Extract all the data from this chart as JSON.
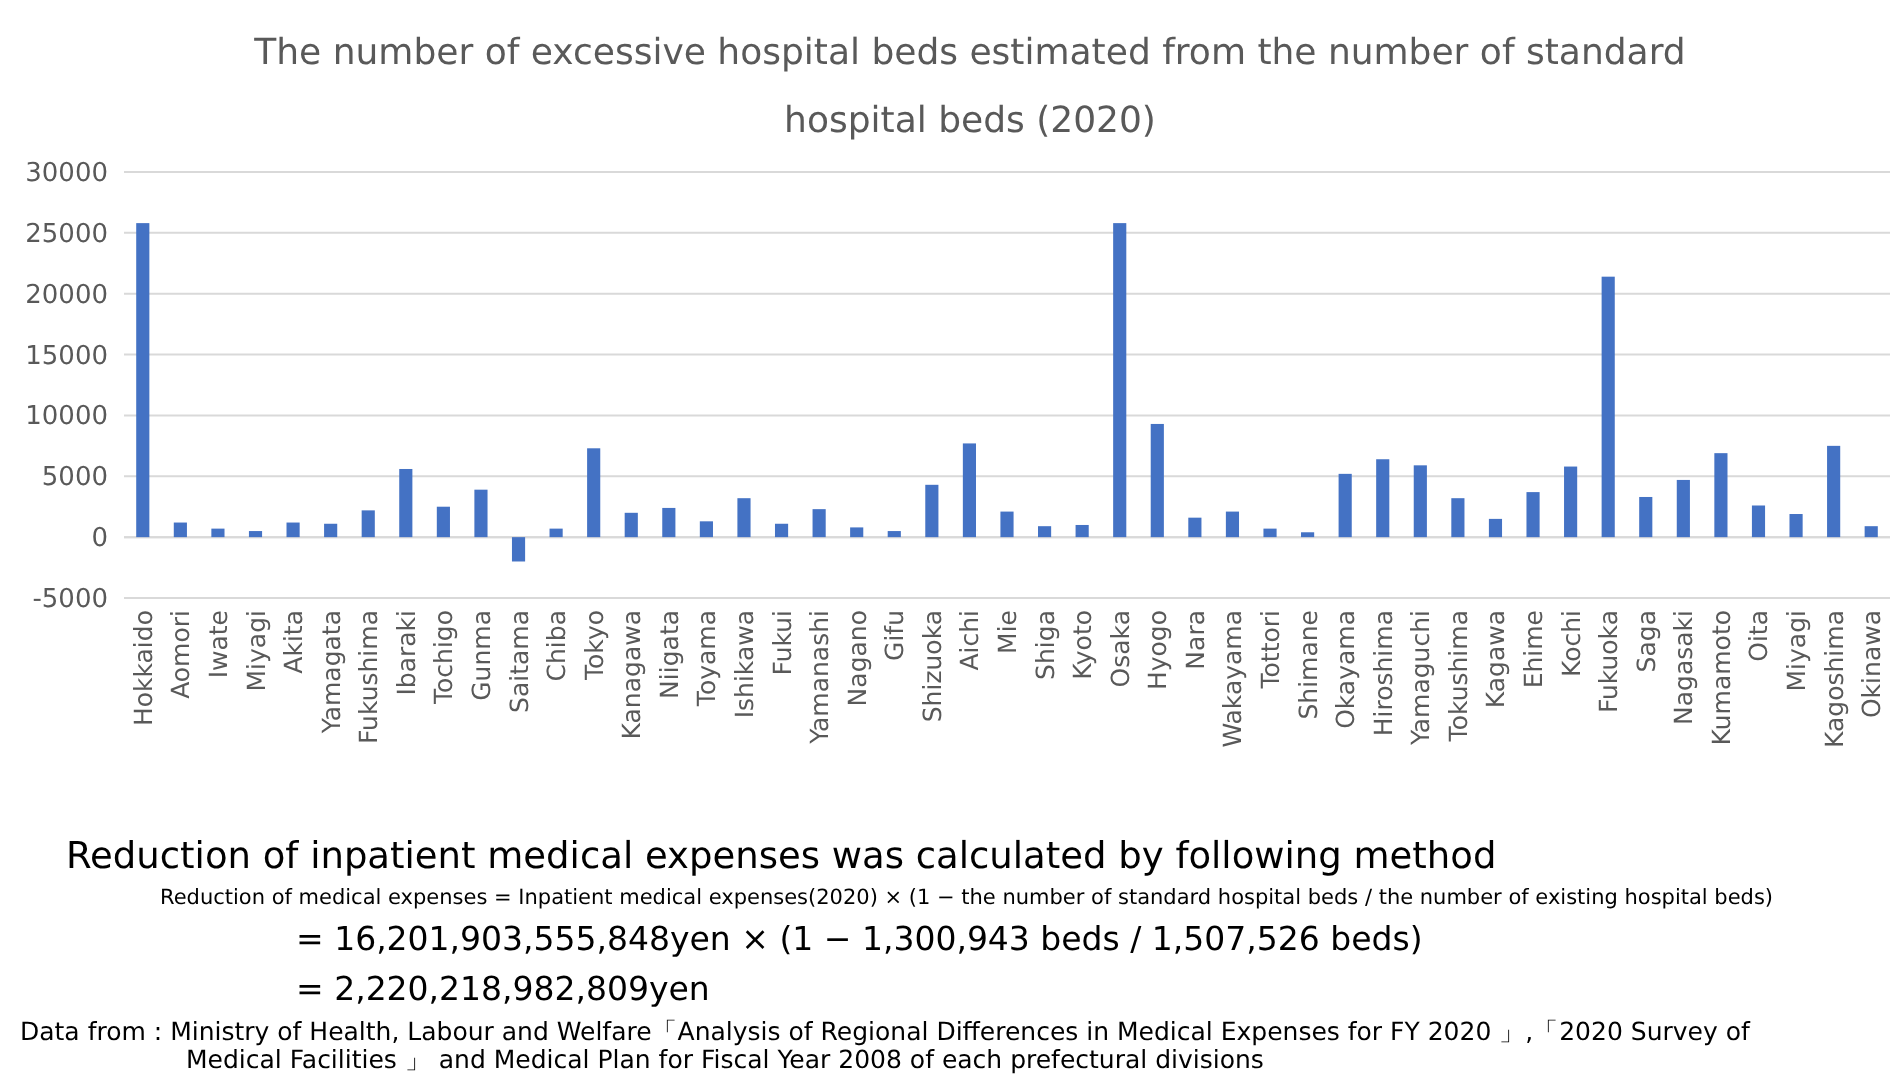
{
  "chart_data": {
    "type": "bar",
    "title": "The number of excessive hospital beds estimated from the number of standard\nhospital beds (2020)",
    "categories": [
      "Hokkaido",
      "Aomori",
      "Iwate",
      "Miyagi",
      "Akita",
      "Yamagata",
      "Fukushima",
      "Ibaraki",
      "Tochigo",
      "Gunma",
      "Saitama",
      "Chiba",
      "Tokyo",
      "Kanagawa",
      "Niigata",
      "Toyama",
      "Ishikawa",
      "Fukui",
      "Yamanashi",
      "Nagano",
      "Gifu",
      "Shizuoka",
      "Aichi",
      "Mie",
      "Shiga",
      "Kyoto",
      "Osaka",
      "Hyogo",
      "Nara",
      "Wakayama",
      "Tottori",
      "Shimane",
      "Okayama",
      "Hiroshima",
      "Yamaguchi",
      "Tokushima",
      "Kagawa",
      "Ehime",
      "Kochi",
      "Fukuoka",
      "Saga",
      "Nagasaki",
      "Kumamoto",
      "Oita",
      "Miyagi",
      "Kagoshima",
      "Okinawa"
    ],
    "values": [
      25800,
      1200,
      700,
      500,
      1200,
      1100,
      2200,
      5600,
      2500,
      3900,
      -2000,
      700,
      7300,
      2000,
      2400,
      1300,
      3200,
      1100,
      2300,
      800,
      500,
      4300,
      7700,
      2100,
      900,
      1000,
      25800,
      9300,
      1600,
      2100,
      700,
      400,
      5200,
      6400,
      5900,
      3200,
      1500,
      3700,
      5800,
      21400,
      3300,
      4700,
      6900,
      2600,
      1900,
      7500,
      900
    ],
    "color": "#4472c4",
    "ylim": [
      -5000,
      30000
    ],
    "yticks": [
      -5000,
      0,
      5000,
      10000,
      15000,
      20000,
      25000,
      30000
    ],
    "grid": "y",
    "annotations": [
      "Reduction of inpatient medical expenses was calculated by following method",
      "Reduction of medical expenses = Inpatient medical expenses(2020) × (1 − the number of standard hospital beds / the number of existing hospital beds)",
      "= 16,201,903,555,848yen × (1 − 1,300,943 beds / 1,507,526 beds)",
      "= 2,220,218,982,809yen",
      "Data from : Ministry of Health, Labour and Welfare「Analysis of Regional Differences in Medical Expenses for FY 2020 」,「2020 Survey of\n      Medical Facilities 」 and Medical Plan for Fiscal Year 2008 of each prefectural divisions"
    ]
  }
}
